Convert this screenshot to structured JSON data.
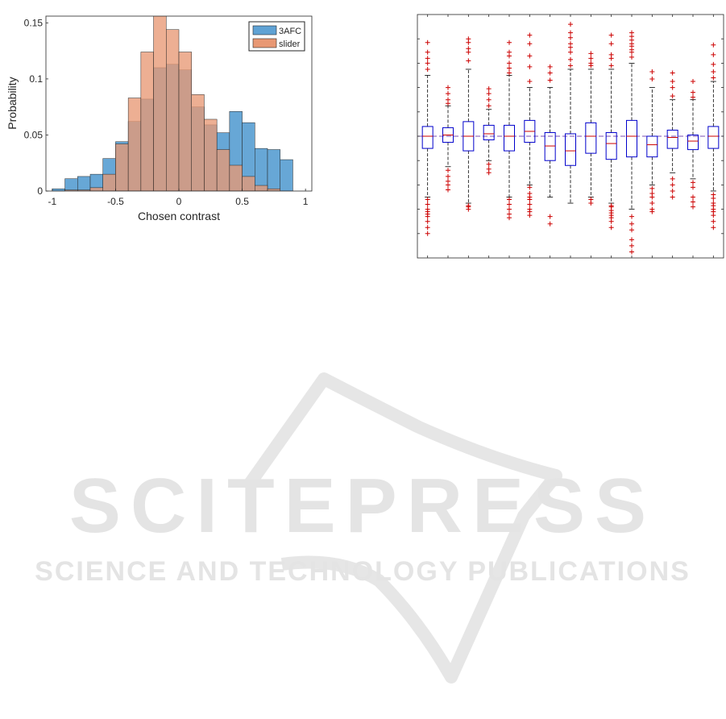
{
  "watermark": {
    "line1": "SCITEPRESS",
    "line2": "SCIENCE AND TECHNOLOGY PUBLICATIONS",
    "color": "#e4e4e4"
  },
  "chart_data": [
    {
      "type": "bar",
      "subtype": "overlapping-histogram",
      "title": "",
      "xlabel": "Chosen contrast",
      "ylabel": "Probability",
      "xlim": [
        -1.05,
        1.05
      ],
      "ylim": [
        0,
        0.156
      ],
      "xticks": [
        -1,
        -0.5,
        0,
        0.5,
        1
      ],
      "xtick_labels": [
        "-1",
        "-0.5",
        "0",
        "0.5",
        "1"
      ],
      "yticks": [
        0,
        0.05,
        0.1,
        0.15
      ],
      "ytick_labels": [
        "0",
        "0.05",
        "0.1",
        "0.15"
      ],
      "legend_position": "top-right",
      "bin_edges": [
        -1.0,
        -0.9,
        -0.8,
        -0.7,
        -0.6,
        -0.5,
        -0.4,
        -0.3,
        -0.2,
        -0.1,
        0.0,
        0.1,
        0.2,
        0.3,
        0.4,
        0.5,
        0.6,
        0.7,
        0.8,
        0.9
      ],
      "series": [
        {
          "name": "3AFC",
          "color": "#5fa2d4",
          "values": [
            0.002,
            0.011,
            0.013,
            0.015,
            0.029,
            0.044,
            0.062,
            0.082,
            0.11,
            0.113,
            0.108,
            0.075,
            0.059,
            0.052,
            0.071,
            0.061,
            0.038,
            0.037,
            0.028
          ]
        },
        {
          "name": "slider",
          "color": "#e89874",
          "values": [
            0.0,
            0.001,
            0.001,
            0.003,
            0.015,
            0.042,
            0.083,
            0.124,
            0.158,
            0.144,
            0.124,
            0.086,
            0.064,
            0.037,
            0.023,
            0.013,
            0.005,
            0.002,
            0.0
          ]
        }
      ]
    },
    {
      "type": "box",
      "title": "",
      "xlabel": "",
      "ylabel": "",
      "n_groups": 15,
      "ylim": [
        -1.0,
        1.0
      ],
      "reference_line": 0.0,
      "colors": {
        "box": "#0000cc",
        "median": "#cc0000",
        "whisker": "#000000",
        "outlier": "#cc0000",
        "reference": "#7a4fb5"
      },
      "groups": [
        {
          "whisker_low": -0.5,
          "q1": -0.1,
          "median": 0.0,
          "q3": 0.08,
          "whisker_high": 0.5,
          "outliers": [
            -0.52,
            -0.56,
            -0.6,
            -0.62,
            -0.64,
            -0.66,
            -0.7,
            -0.75,
            -0.8,
            0.55,
            0.6,
            0.64,
            0.69,
            0.77
          ]
        },
        {
          "whisker_low": -0.25,
          "q1": -0.05,
          "median": 0.01,
          "q3": 0.07,
          "whisker_high": 0.25,
          "outliers": [
            -0.28,
            -0.33,
            -0.37,
            -0.4,
            -0.44,
            0.27,
            0.3,
            0.35,
            0.4
          ]
        },
        {
          "whisker_low": -0.55,
          "q1": -0.12,
          "median": 0.0,
          "q3": 0.12,
          "whisker_high": 0.55,
          "outliers": [
            -0.57,
            -0.58,
            -0.6,
            0.62,
            0.69,
            0.72,
            0.77,
            0.8
          ]
        },
        {
          "whisker_low": -0.2,
          "q1": -0.03,
          "median": 0.02,
          "q3": 0.09,
          "whisker_high": 0.22,
          "outliers": [
            -0.23,
            -0.27,
            -0.3,
            0.25,
            0.3,
            0.35,
            0.39
          ]
        },
        {
          "whisker_low": -0.5,
          "q1": -0.12,
          "median": 0.0,
          "q3": 0.09,
          "whisker_high": 0.5,
          "outliers": [
            -0.52,
            -0.56,
            -0.6,
            -0.64,
            -0.67,
            0.52,
            0.56,
            0.6,
            0.66,
            0.69,
            0.77
          ]
        },
        {
          "whisker_low": -0.4,
          "q1": -0.05,
          "median": 0.04,
          "q3": 0.13,
          "whisker_high": 0.4,
          "outliers": [
            -0.42,
            -0.47,
            -0.5,
            -0.52,
            -0.56,
            -0.6,
            -0.62,
            -0.65,
            0.45,
            0.57,
            0.66,
            0.76,
            0.83
          ]
        },
        {
          "whisker_low": -0.5,
          "q1": -0.2,
          "median": -0.08,
          "q3": 0.03,
          "whisker_high": 0.4,
          "outliers": [
            -0.66,
            -0.72,
            0.46,
            0.52,
            0.57
          ]
        },
        {
          "whisker_low": -0.55,
          "q1": -0.24,
          "median": -0.12,
          "q3": 0.02,
          "whisker_high": 0.55,
          "outliers": [
            0.58,
            0.63,
            0.69,
            0.73,
            0.76,
            0.81,
            0.85,
            0.92
          ]
        },
        {
          "whisker_low": -0.5,
          "q1": -0.14,
          "median": 0.0,
          "q3": 0.11,
          "whisker_high": 0.55,
          "outliers": [
            -0.52,
            -0.55,
            0.58,
            0.6,
            0.64,
            0.68
          ]
        },
        {
          "whisker_low": -0.55,
          "q1": -0.19,
          "median": -0.06,
          "q3": 0.03,
          "whisker_high": 0.55,
          "outliers": [
            -0.57,
            -0.58,
            -0.61,
            -0.63,
            -0.65,
            -0.67,
            -0.7,
            -0.75,
            0.58,
            0.64,
            0.67,
            0.76,
            0.83
          ]
        },
        {
          "whisker_low": -0.6,
          "q1": -0.17,
          "median": 0.0,
          "q3": 0.13,
          "whisker_high": 0.6,
          "outliers": [
            -0.66,
            -0.72,
            -0.77,
            -0.85,
            -0.9,
            -0.95,
            0.65,
            0.69,
            0.71,
            0.74,
            0.76,
            0.79,
            0.82,
            0.85
          ]
        },
        {
          "whisker_low": -0.4,
          "q1": -0.17,
          "median": -0.07,
          "q3": 0.0,
          "whisker_high": 0.4,
          "outliers": [
            -0.43,
            -0.47,
            -0.5,
            -0.55,
            -0.6,
            -0.62,
            0.47,
            0.53
          ]
        },
        {
          "whisker_low": -0.3,
          "q1": -0.1,
          "median": -0.01,
          "q3": 0.05,
          "whisker_high": 0.3,
          "outliers": [
            -0.35,
            -0.4,
            -0.45,
            -0.5,
            0.33,
            0.4,
            0.45,
            0.52
          ]
        },
        {
          "whisker_low": -0.35,
          "q1": -0.11,
          "median": -0.04,
          "q3": 0.01,
          "whisker_high": 0.3,
          "outliers": [
            -0.38,
            -0.42,
            -0.5,
            -0.54,
            -0.58,
            0.32,
            0.36,
            0.45
          ]
        },
        {
          "whisker_low": -0.45,
          "q1": -0.1,
          "median": 0.0,
          "q3": 0.08,
          "whisker_high": 0.45,
          "outliers": [
            -0.48,
            -0.51,
            -0.55,
            -0.57,
            -0.6,
            -0.62,
            -0.65,
            -0.7,
            -0.75,
            0.48,
            0.53,
            0.59,
            0.67,
            0.75
          ]
        }
      ]
    }
  ]
}
